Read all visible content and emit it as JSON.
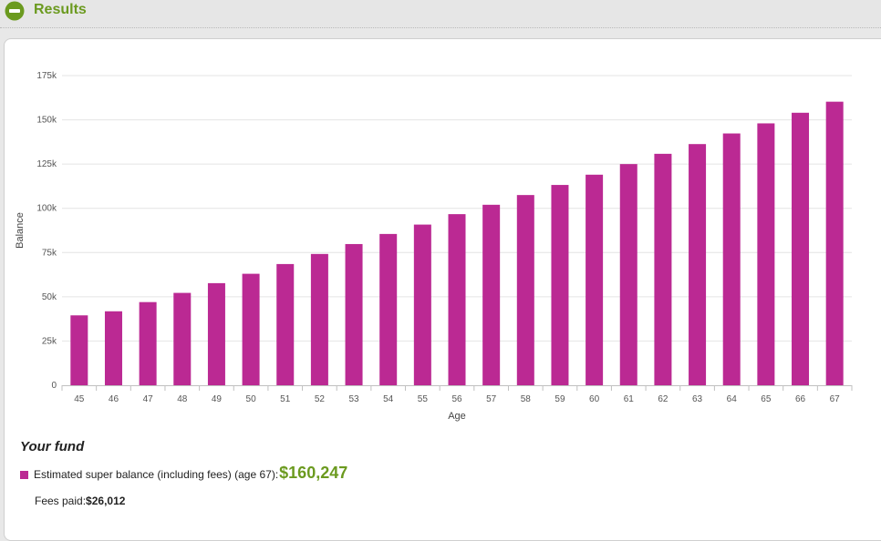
{
  "section": {
    "title": "Results",
    "toggle_icon": "collapse-minus-icon",
    "accent_color": "#6b9a1f"
  },
  "chart_data": {
    "type": "bar",
    "xlabel": "Age",
    "ylabel": "Balance",
    "categories": [
      "45",
      "46",
      "47",
      "48",
      "49",
      "50",
      "51",
      "52",
      "53",
      "54",
      "55",
      "56",
      "57",
      "58",
      "59",
      "60",
      "61",
      "62",
      "63",
      "64",
      "65",
      "66",
      "67"
    ],
    "series": [
      {
        "color": "#bb2993",
        "values": [
          39500,
          41800,
          47000,
          52200,
          57700,
          63000,
          68500,
          74200,
          79800,
          85500,
          90800,
          96700,
          102000,
          107500,
          113200,
          119000,
          125000,
          130800,
          136300,
          142300,
          148000,
          154000,
          160247
        ]
      }
    ],
    "ylim": [
      0,
      175000
    ],
    "yticks": [
      0,
      25000,
      50000,
      75000,
      100000,
      125000,
      150000,
      175000
    ],
    "ytick_labels": [
      "0",
      "25k",
      "50k",
      "75k",
      "100k",
      "125k",
      "150k",
      "175k"
    ],
    "grid": true
  },
  "fund": {
    "heading": "Your fund",
    "estimate_label": "Estimated super balance (including fees) (age 67):",
    "estimate_value": "$160,247",
    "fees_label": "Fees paid:",
    "fees_value": "$26,012",
    "swatch_color": "#bb2993"
  }
}
